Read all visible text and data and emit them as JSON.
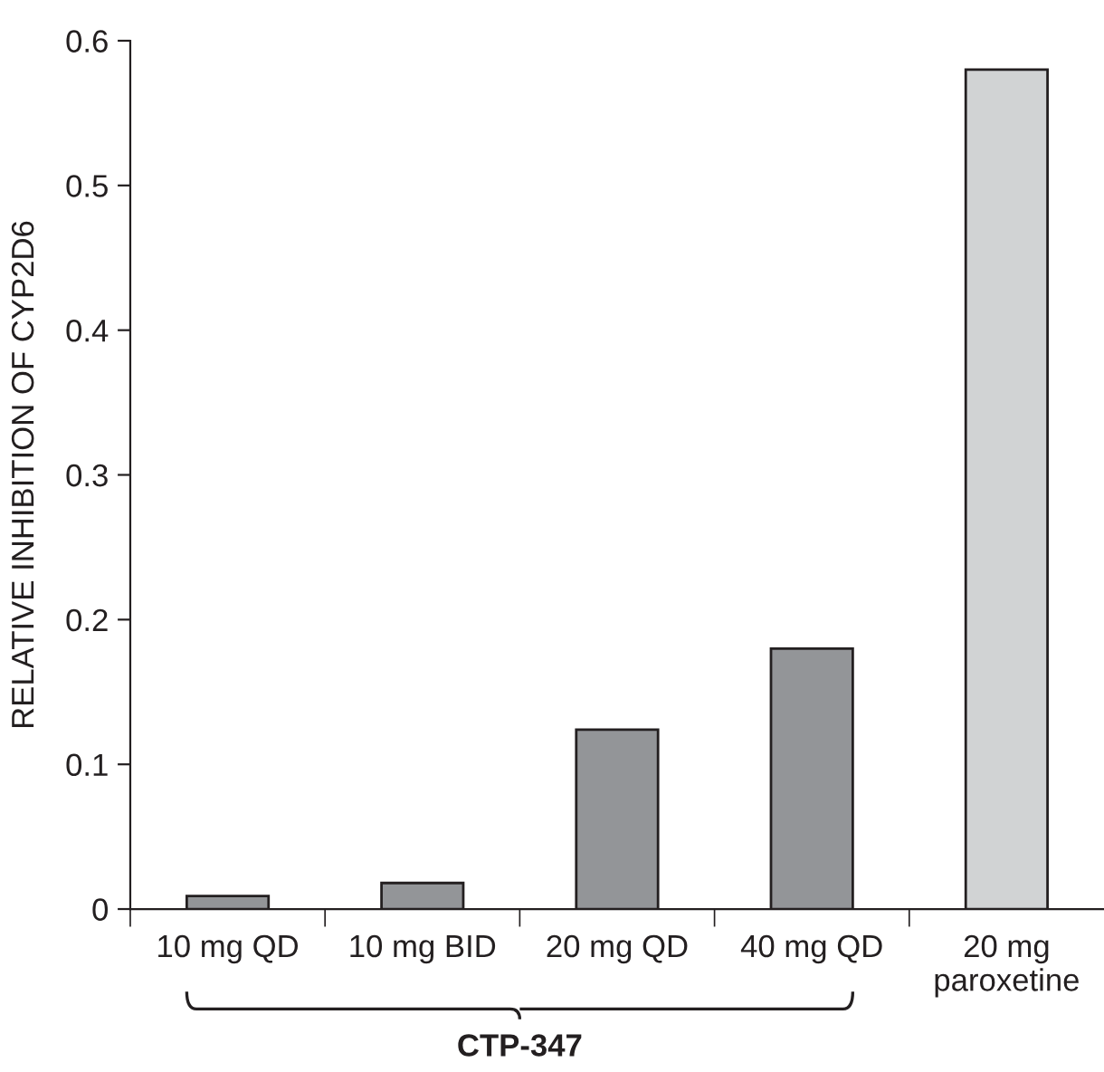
{
  "chart_data": {
    "type": "bar",
    "ylabel": "RELATIVE INHIBITION OF CYP2D6",
    "categories": [
      "10 mg QD",
      "10 mg BID",
      "20 mg QD",
      "40 mg QD",
      "20 mg\nparoxetine"
    ],
    "values": [
      0.009,
      0.018,
      0.124,
      0.18,
      0.58
    ],
    "colors": [
      "#939598",
      "#939598",
      "#939598",
      "#939598",
      "#d1d3d4"
    ],
    "ylim": [
      0,
      0.6
    ],
    "yticks": [
      {
        "value": 0,
        "label": "0"
      },
      0.1,
      0.2,
      0.3,
      0.4,
      0.5,
      0.6
    ],
    "annotations": [
      "CTP-347"
    ],
    "grid": false,
    "legend": false
  }
}
